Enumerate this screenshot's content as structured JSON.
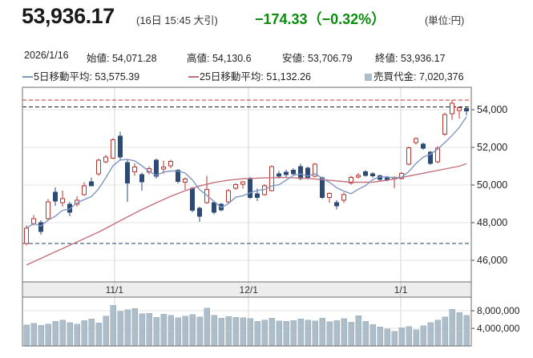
{
  "header": {
    "price": "53,936.17",
    "session_note": "(16日 15:45 大引)",
    "change": "−174.33（−0.32%）",
    "change_color": "#0a8c0f",
    "unit_note": "(単位:円)"
  },
  "stats": {
    "date": "2026/1/16",
    "open_label": "始値:",
    "open_value": "54,071.28",
    "high_label": "高値:",
    "high_value": "54,130.6",
    "low_label": "安値:",
    "low_value": "53,706.79",
    "close_label": "終値:",
    "close_value": "53,936.17"
  },
  "legend": {
    "ma5_label": "5日移動平均:",
    "ma5_value": "53,575.39",
    "ma25_label": "25日移動平均:",
    "ma25_value": "51,132.26",
    "volume_label": "売買代金:",
    "volume_value": "7,020,376"
  },
  "chart_data": {
    "type": "candlestick+volume",
    "title": "",
    "y_axis": {
      "ticks": [
        {
          "value": 54000,
          "label": "54,000"
        },
        {
          "value": 52000,
          "label": "52,000"
        },
        {
          "value": 50000,
          "label": "50,000"
        },
        {
          "value": 48000,
          "label": "48,000"
        },
        {
          "value": 46000,
          "label": "46,000"
        }
      ]
    },
    "volume_axis": {
      "ticks": [
        {
          "value": 8,
          "label": "8,000,000"
        },
        {
          "value": 4,
          "label": "4,000,000"
        }
      ]
    },
    "x_axis": {
      "months": [
        {
          "label": "11/1",
          "index": 12.2
        },
        {
          "label": "12/1",
          "index": 30.8
        },
        {
          "label": "1/1",
          "index": 51.9
        }
      ]
    },
    "dashed_lines": [
      {
        "price": 54520,
        "color": "#c03030"
      },
      {
        "price": 54140,
        "color": "#222222"
      },
      {
        "price": 46900,
        "color": "#1f3f6e"
      }
    ],
    "candles_ohlc": [
      [
        46894,
        47850,
        46780,
        47702
      ],
      [
        47957,
        48400,
        47860,
        48213
      ],
      [
        47998,
        48120,
        47362,
        47532
      ],
      [
        48213,
        49250,
        48150,
        49106
      ],
      [
        49617,
        49872,
        48900,
        49149
      ],
      [
        49064,
        49702,
        48851,
        49277
      ],
      [
        48979,
        49100,
        48340,
        48553
      ],
      [
        48979,
        49400,
        48850,
        49191
      ],
      [
        49489,
        50150,
        49420,
        49957
      ],
      [
        50170,
        50400,
        49930,
        49957
      ],
      [
        50596,
        51400,
        50500,
        51319
      ],
      [
        51234,
        51600,
        51150,
        51489
      ],
      [
        51420,
        52500,
        51380,
        52400
      ],
      [
        52600,
        52820,
        51350,
        51480
      ],
      [
        51200,
        51350,
        49100,
        50100
      ],
      [
        50700,
        51150,
        50500,
        50950
      ],
      [
        50550,
        50650,
        49700,
        50180
      ],
      [
        50690,
        51000,
        50550,
        50880
      ],
      [
        51320,
        51400,
        50350,
        50470
      ],
      [
        50850,
        51300,
        50600,
        50950
      ],
      [
        51020,
        51350,
        50900,
        51250
      ],
      [
        50780,
        50850,
        50080,
        50190
      ],
      [
        50150,
        50400,
        49750,
        50320
      ],
      [
        49830,
        49900,
        48550,
        48650
      ],
      [
        48760,
        48850,
        48050,
        48350
      ],
      [
        49070,
        50500,
        49000,
        49760
      ],
      [
        49060,
        49150,
        48450,
        48560
      ],
      [
        48980,
        49050,
        48600,
        48690
      ],
      [
        49110,
        49780,
        49050,
        49700
      ],
      [
        49840,
        50100,
        49750,
        50030
      ],
      [
        50040,
        50220,
        49800,
        50160
      ],
      [
        50350,
        50420,
        49250,
        49330
      ],
      [
        49540,
        49800,
        49150,
        49330
      ],
      [
        49500,
        50050,
        49420,
        49960
      ],
      [
        49700,
        51050,
        49650,
        50970
      ],
      [
        50590,
        50750,
        50350,
        50470
      ],
      [
        50680,
        50800,
        50420,
        50550
      ],
      [
        50780,
        50900,
        50480,
        50600
      ],
      [
        50980,
        51120,
        50250,
        50350
      ],
      [
        50900,
        50980,
        50300,
        50400
      ],
      [
        50460,
        51180,
        50400,
        51100
      ],
      [
        50390,
        50450,
        49250,
        49330
      ],
      [
        49330,
        49620,
        49060,
        49550
      ],
      [
        49060,
        49200,
        48700,
        48900
      ],
      [
        49200,
        49600,
        49050,
        49500
      ],
      [
        50100,
        50480,
        50020,
        50400
      ],
      [
        50420,
        50640,
        50330,
        50520
      ],
      [
        50700,
        50780,
        50450,
        50520
      ],
      [
        50600,
        50690,
        50380,
        50480
      ],
      [
        50480,
        50550,
        50220,
        50300
      ],
      [
        50420,
        50480,
        50200,
        50280
      ],
      [
        50310,
        50470,
        49830,
        50390
      ],
      [
        50350,
        50690,
        50300,
        50620
      ],
      [
        51110,
        52050,
        51040,
        51970
      ],
      [
        52250,
        52540,
        52140,
        52470
      ],
      [
        52170,
        52260,
        51870,
        51960
      ],
      [
        51750,
        51810,
        51060,
        51140
      ],
      [
        51240,
        52060,
        51150,
        51960
      ],
      [
        52700,
        53850,
        52610,
        53750
      ],
      [
        53790,
        54520,
        53460,
        54340
      ],
      [
        53960,
        54160,
        53540,
        54110
      ],
      [
        54071,
        54131,
        53707,
        53936
      ]
    ],
    "volume_millions": [
      4.8,
      5.1,
      4.7,
      5.0,
      5.6,
      5.9,
      5.3,
      5.0,
      5.8,
      6.1,
      5.2,
      6.8,
      9.2,
      7.9,
      8.2,
      8.5,
      7.3,
      7.4,
      6.5,
      7.2,
      7.0,
      6.4,
      6.8,
      7.1,
      6.6,
      8.6,
      7.0,
      6.3,
      6.7,
      6.5,
      6.4,
      6.2,
      5.6,
      5.9,
      6.3,
      5.7,
      5.6,
      5.8,
      6.1,
      5.9,
      5.7,
      6.3,
      5.5,
      5.8,
      6.2,
      5.4,
      6.9,
      5.6,
      4.9,
      4.3,
      3.9,
      3.3,
      4.1,
      4.4,
      3.7,
      4.6,
      5.3,
      5.9,
      6.6,
      8.3,
      7.6,
      7.0
    ],
    "ma25_points": [
      [
        0,
        45750
      ],
      [
        2,
        46100
      ],
      [
        4,
        46450
      ],
      [
        6,
        46800
      ],
      [
        8,
        47150
      ],
      [
        10,
        47500
      ],
      [
        12,
        47900
      ],
      [
        14,
        48300
      ],
      [
        16,
        48700
      ],
      [
        18,
        49050
      ],
      [
        20,
        49400
      ],
      [
        22,
        49700
      ],
      [
        24,
        49950
      ],
      [
        26,
        50130
      ],
      [
        28,
        50260
      ],
      [
        30,
        50330
      ],
      [
        33,
        50380
      ],
      [
        36,
        50400
      ],
      [
        39,
        50350
      ],
      [
        42,
        50250
      ],
      [
        45,
        50150
      ],
      [
        48,
        50150
      ],
      [
        50,
        50250
      ],
      [
        52,
        50400
      ],
      [
        54,
        50550
      ],
      [
        56,
        50700
      ],
      [
        58,
        50850
      ],
      [
        60,
        51000
      ],
      [
        61,
        51132
      ]
    ],
    "colors": {
      "up": "#b8352f",
      "down": "#2c4a73",
      "ma5": "#8096c3",
      "ma25": "#c4707c",
      "volume_bar": "#adbeca",
      "grid": "#e5e5e5",
      "month_grid": "#d4d4d4",
      "border": "#6e6e6e",
      "band_bg": "#ededed"
    }
  }
}
